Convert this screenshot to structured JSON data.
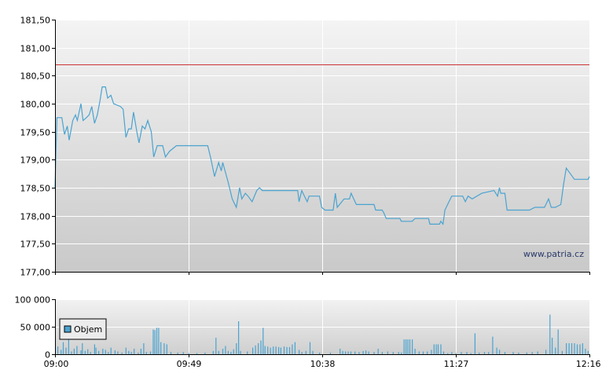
{
  "chart_data": [
    {
      "type": "line",
      "name": "price",
      "watermark": "www.patria.cz",
      "reference_line": {
        "value": 180.7,
        "color": "#cc3333"
      },
      "line_color": "#4aa3d0",
      "ylim": [
        177.0,
        181.5
      ],
      "y_ticks": [
        177.0,
        177.5,
        178.0,
        178.5,
        179.0,
        179.5,
        180.0,
        180.5,
        181.0,
        181.5
      ],
      "y_tick_labels": [
        "177,00",
        "177,50",
        "178,00",
        "178,50",
        "179,00",
        "179,50",
        "180,00",
        "180,50",
        "181,00",
        "181,50"
      ],
      "x_range_minutes": [
        0,
        196
      ],
      "x_ticks": [
        0,
        49,
        98,
        147,
        196
      ],
      "x_tick_labels": [
        "09:00",
        "09:49",
        "10:38",
        "11:27",
        "12:16"
      ],
      "grid": true,
      "points": [
        [
          0,
          178.5
        ],
        [
          0.7,
          179.75
        ],
        [
          2.5,
          179.75
        ],
        [
          3.5,
          179.45
        ],
        [
          4.5,
          179.6
        ],
        [
          5.2,
          179.35
        ],
        [
          6.5,
          179.7
        ],
        [
          7.5,
          179.8
        ],
        [
          8.2,
          179.7
        ],
        [
          9.5,
          180.0
        ],
        [
          10.3,
          179.7
        ],
        [
          11.5,
          179.75
        ],
        [
          12.5,
          179.8
        ],
        [
          13.5,
          179.95
        ],
        [
          14.5,
          179.65
        ],
        [
          15.5,
          179.8
        ],
        [
          16.5,
          180.05
        ],
        [
          17.3,
          180.3
        ],
        [
          18.5,
          180.3
        ],
        [
          19.3,
          180.1
        ],
        [
          20.5,
          180.15
        ],
        [
          21.5,
          180.0
        ],
        [
          24,
          179.95
        ],
        [
          25,
          179.9
        ],
        [
          26,
          179.4
        ],
        [
          27,
          179.55
        ],
        [
          28,
          179.55
        ],
        [
          28.8,
          179.85
        ],
        [
          30,
          179.5
        ],
        [
          30.8,
          179.3
        ],
        [
          32,
          179.6
        ],
        [
          33,
          179.55
        ],
        [
          34,
          179.7
        ],
        [
          35.3,
          179.5
        ],
        [
          36.2,
          179.05
        ],
        [
          37.5,
          179.25
        ],
        [
          39.5,
          179.25
        ],
        [
          40.5,
          179.05
        ],
        [
          42,
          179.15
        ],
        [
          44.5,
          179.25
        ],
        [
          56,
          179.25
        ],
        [
          57,
          179.05
        ],
        [
          58.5,
          178.7
        ],
        [
          60,
          178.95
        ],
        [
          61,
          178.8
        ],
        [
          61.5,
          178.95
        ],
        [
          63.5,
          178.6
        ],
        [
          65,
          178.3
        ],
        [
          66.5,
          178.15
        ],
        [
          67.7,
          178.5
        ],
        [
          68.5,
          178.3
        ],
        [
          69.8,
          178.4
        ],
        [
          70.8,
          178.35
        ],
        [
          72.3,
          178.25
        ],
        [
          74,
          178.45
        ],
        [
          75,
          178.5
        ],
        [
          76,
          178.45
        ],
        [
          89,
          178.45
        ],
        [
          89.5,
          178.25
        ],
        [
          90.5,
          178.45
        ],
        [
          91.5,
          178.35
        ],
        [
          92.5,
          178.25
        ],
        [
          93.2,
          178.35
        ],
        [
          97,
          178.35
        ],
        [
          97.8,
          178.15
        ],
        [
          99,
          178.1
        ],
        [
          102,
          178.1
        ],
        [
          102.8,
          178.4
        ],
        [
          103.5,
          178.15
        ],
        [
          106,
          178.3
        ],
        [
          108,
          178.3
        ],
        [
          108.6,
          178.4
        ],
        [
          110.5,
          178.2
        ],
        [
          112.5,
          178.2
        ],
        [
          117,
          178.2
        ],
        [
          117.6,
          178.1
        ],
        [
          120,
          178.1
        ],
        [
          120.6,
          178.05
        ],
        [
          121.5,
          177.95
        ],
        [
          126.5,
          177.95
        ],
        [
          127,
          177.9
        ],
        [
          131,
          177.9
        ],
        [
          132,
          177.95
        ],
        [
          137,
          177.95
        ],
        [
          137.5,
          177.85
        ],
        [
          141,
          177.85
        ],
        [
          141.5,
          177.9
        ],
        [
          142.3,
          177.85
        ],
        [
          143,
          178.1
        ],
        [
          144.5,
          178.25
        ],
        [
          145.5,
          178.35
        ],
        [
          149.5,
          178.35
        ],
        [
          150.5,
          178.25
        ],
        [
          151.5,
          178.35
        ],
        [
          153,
          178.3
        ],
        [
          156.5,
          178.4
        ],
        [
          161,
          178.45
        ],
        [
          162.3,
          178.35
        ],
        [
          163,
          178.5
        ],
        [
          163.5,
          178.4
        ],
        [
          165,
          178.4
        ],
        [
          165.8,
          178.1
        ],
        [
          169,
          178.1
        ],
        [
          174,
          178.1
        ],
        [
          176,
          178.15
        ],
        [
          177.5,
          178.15
        ],
        [
          178.5,
          178.15
        ],
        [
          179.5,
          178.15
        ],
        [
          181,
          178.3
        ],
        [
          182,
          178.15
        ],
        [
          183.5,
          178.15
        ],
        [
          185.5,
          178.2
        ],
        [
          186.5,
          178.55
        ],
        [
          187.5,
          178.85
        ],
        [
          189,
          178.75
        ],
        [
          190.5,
          178.65
        ],
        [
          195.5,
          178.65
        ],
        [
          196,
          178.7
        ]
      ]
    },
    {
      "type": "bar",
      "name": "volume",
      "legend": "Objem",
      "bar_color": "#4aa3d0",
      "ylim": [
        0,
        100000
      ],
      "y_ticks": [
        0,
        50000,
        100000
      ],
      "y_tick_labels": [
        "0",
        "50 000",
        "100 000"
      ],
      "x_range_minutes": [
        0,
        196
      ],
      "x_ticks": [
        0,
        49,
        98,
        147,
        196
      ],
      "x_tick_labels": [
        "09:00",
        "09:49",
        "10:38",
        "11:27",
        "12:16"
      ],
      "grid": true,
      "bars": [
        [
          1,
          14000
        ],
        [
          2.2,
          8000
        ],
        [
          3,
          22000
        ],
        [
          4,
          12000
        ],
        [
          5,
          27000
        ],
        [
          6,
          5000
        ],
        [
          7,
          10000
        ],
        [
          8,
          15000
        ],
        [
          9.5,
          7000
        ],
        [
          10,
          20000
        ],
        [
          11,
          6000
        ],
        [
          12,
          9000
        ],
        [
          13,
          4000
        ],
        [
          14.5,
          18000
        ],
        [
          15,
          12000
        ],
        [
          16,
          6000
        ],
        [
          17.5,
          10000
        ],
        [
          18.5,
          8000
        ],
        [
          19.5,
          4000
        ],
        [
          20.5,
          12000
        ],
        [
          22,
          7000
        ],
        [
          23,
          5000
        ],
        [
          24.5,
          3000
        ],
        [
          26,
          12000
        ],
        [
          27,
          6000
        ],
        [
          28,
          4000
        ],
        [
          29,
          10000
        ],
        [
          30.5,
          3000
        ],
        [
          31.5,
          10000
        ],
        [
          32.5,
          20000
        ],
        [
          33.5,
          4000
        ],
        [
          35,
          5000
        ],
        [
          36,
          45000
        ],
        [
          36.6,
          44000
        ],
        [
          37.3,
          48000
        ],
        [
          38,
          48000
        ],
        [
          38.8,
          22000
        ],
        [
          40,
          20000
        ],
        [
          41,
          18000
        ],
        [
          42.5,
          4000
        ],
        [
          45,
          3000
        ],
        [
          47,
          4000
        ],
        [
          49,
          2000
        ],
        [
          52,
          2000
        ],
        [
          55,
          3000
        ],
        [
          58,
          6000
        ],
        [
          59,
          30000
        ],
        [
          60,
          6000
        ],
        [
          61.5,
          10000
        ],
        [
          62.5,
          15000
        ],
        [
          63.5,
          6000
        ],
        [
          64.5,
          4000
        ],
        [
          65.5,
          9000
        ],
        [
          66.5,
          20000
        ],
        [
          67.3,
          60000
        ],
        [
          68,
          6000
        ],
        [
          70.5,
          5000
        ],
        [
          72.5,
          12000
        ],
        [
          73.5,
          16000
        ],
        [
          74.5,
          20000
        ],
        [
          75.5,
          25000
        ],
        [
          76.3,
          48000
        ],
        [
          77,
          15000
        ],
        [
          78,
          14000
        ],
        [
          79,
          12000
        ],
        [
          80,
          14000
        ],
        [
          81,
          14000
        ],
        [
          82,
          13000
        ],
        [
          82.8,
          12000
        ],
        [
          84,
          14000
        ],
        [
          85,
          13000
        ],
        [
          86,
          13000
        ],
        [
          87,
          18000
        ],
        [
          88,
          22000
        ],
        [
          89.5,
          8000
        ],
        [
          90.5,
          4000
        ],
        [
          92,
          6000
        ],
        [
          93.5,
          22000
        ],
        [
          94.5,
          6000
        ],
        [
          97,
          3000
        ],
        [
          101,
          3000
        ],
        [
          104.5,
          10000
        ],
        [
          105.5,
          6000
        ],
        [
          106.5,
          5000
        ],
        [
          107.5,
          5000
        ],
        [
          108.5,
          5000
        ],
        [
          110,
          5000
        ],
        [
          111.5,
          4000
        ],
        [
          113,
          6000
        ],
        [
          114,
          7000
        ],
        [
          115,
          5000
        ],
        [
          117,
          4000
        ],
        [
          118.5,
          10000
        ],
        [
          120,
          4000
        ],
        [
          122,
          5000
        ],
        [
          124,
          4000
        ],
        [
          126,
          4000
        ],
        [
          127,
          3000
        ],
        [
          128,
          27000
        ],
        [
          128.7,
          27000
        ],
        [
          129.4,
          27000
        ],
        [
          130.1,
          27000
        ],
        [
          131,
          27000
        ],
        [
          132,
          10000
        ],
        [
          133.5,
          5000
        ],
        [
          135,
          5000
        ],
        [
          136.5,
          5000
        ],
        [
          138,
          8000
        ],
        [
          139,
          18000
        ],
        [
          139.8,
          18000
        ],
        [
          140.5,
          18000
        ],
        [
          141.5,
          18000
        ],
        [
          142.5,
          5000
        ],
        [
          144,
          2000
        ],
        [
          145.5,
          4000
        ],
        [
          147,
          2000
        ],
        [
          149,
          4000
        ],
        [
          151,
          4000
        ],
        [
          152.5,
          2000
        ],
        [
          154,
          38000
        ],
        [
          155.5,
          3000
        ],
        [
          157.5,
          4000
        ],
        [
          159,
          4000
        ],
        [
          160.5,
          32000
        ],
        [
          162,
          12000
        ],
        [
          163,
          8000
        ],
        [
          165,
          4000
        ],
        [
          168,
          4000
        ],
        [
          170,
          3000
        ],
        [
          173,
          3000
        ],
        [
          175,
          4000
        ],
        [
          177,
          5000
        ],
        [
          180,
          8000
        ],
        [
          181.5,
          72000
        ],
        [
          182.3,
          30000
        ],
        [
          183.5,
          12000
        ],
        [
          184.5,
          45000
        ],
        [
          186,
          6000
        ],
        [
          187.5,
          20000
        ],
        [
          188.5,
          20000
        ],
        [
          189.5,
          20000
        ],
        [
          190.5,
          20000
        ],
        [
          191.5,
          18000
        ],
        [
          192.5,
          18000
        ],
        [
          193.5,
          20000
        ],
        [
          194.5,
          10000
        ],
        [
          195.5,
          6000
        ]
      ]
    }
  ]
}
